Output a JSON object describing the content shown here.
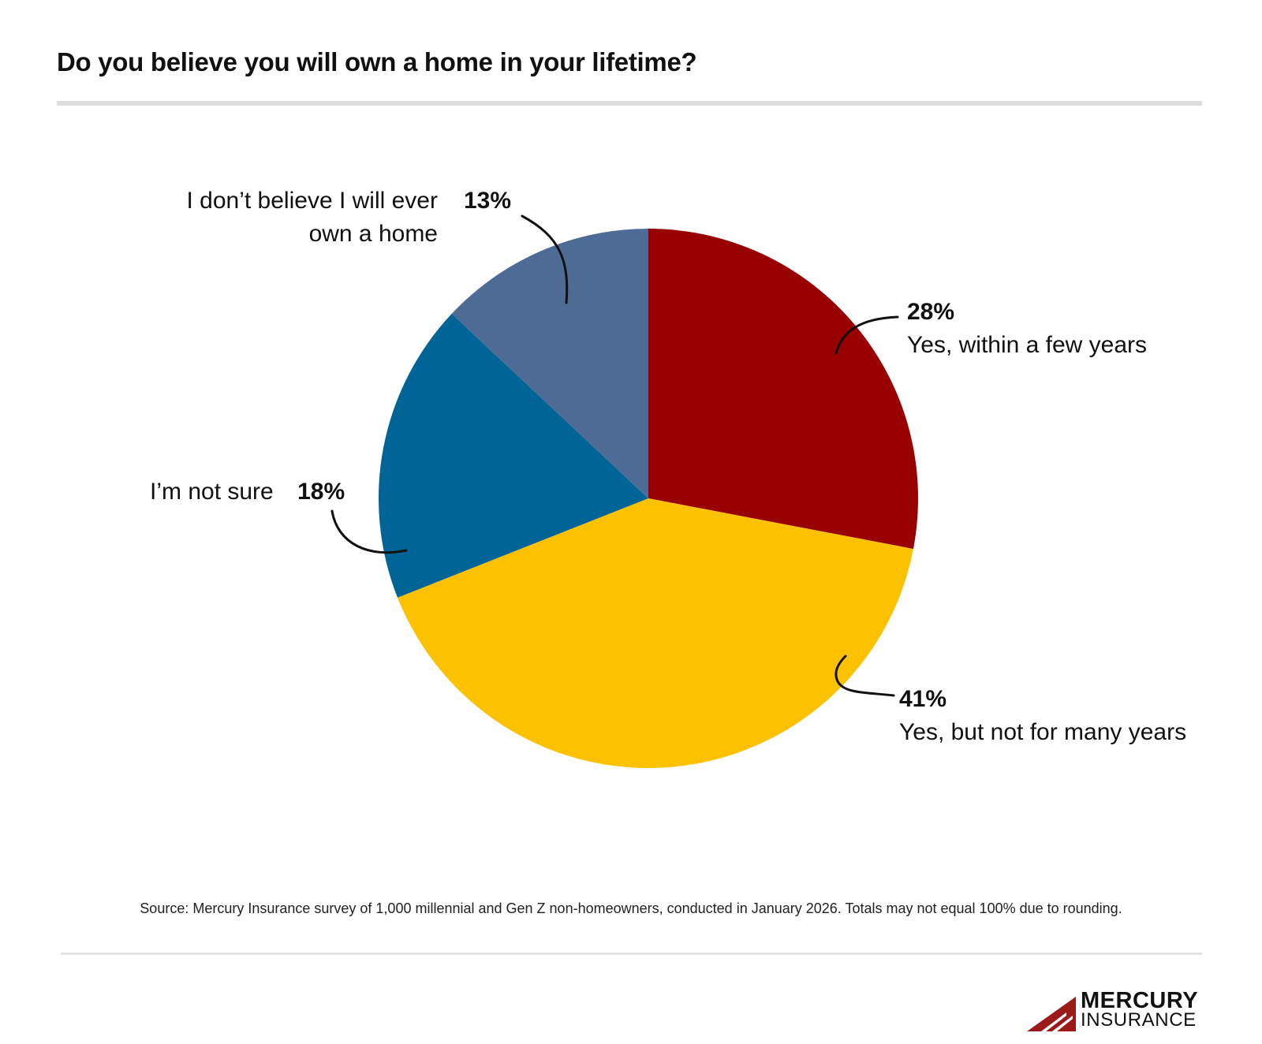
{
  "chart_data": {
    "type": "pie",
    "title": "Do you believe you will own a home in your lifetime?",
    "slices": [
      {
        "label": "Yes, within a few years",
        "value": 28,
        "value_label": "28%",
        "color": "#990000"
      },
      {
        "label": "Yes, but not for many years",
        "value": 41,
        "value_label": "41%",
        "color": "#fcc100"
      },
      {
        "label": "I’m not sure",
        "value": 18,
        "value_label": "18%",
        "color": "#006496"
      },
      {
        "label": "I don’t believe I will ever own a home",
        "value": 13,
        "value_label": "13%",
        "color": "#4e6b96"
      }
    ],
    "start_angle": "12 o'clock",
    "direction": "clockwise"
  },
  "source": "Source: Mercury Insurance survey of 1,000 millennial and Gen Z non-homeowners, conducted in January 2026. Totals may not equal 100% due to rounding.",
  "brand": {
    "line1": "MERCURY",
    "line2": "INSURANCE",
    "color": "#9b1b1b"
  }
}
